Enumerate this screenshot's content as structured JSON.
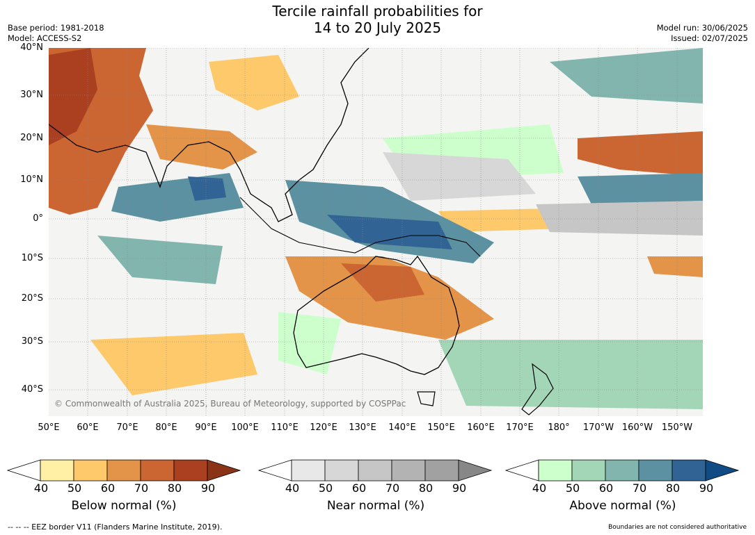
{
  "title_line1": "Tercile rainfall probabilities for",
  "title_line2": "14 to 20 July 2025",
  "base_period": "Base period: 1981-2018",
  "model": "Model: ACCESS-S2",
  "model_run": "Model run: 30/06/2025",
  "issued": "Issued: 02/07/2025",
  "copyright": "© Commonwealth of Australia 2025, Bureau of Meteorology, supported by COSPPac",
  "lat_labels": [
    "40°N",
    "30°N",
    "20°N",
    "10°N",
    "0°",
    "10°S",
    "20°S",
    "30°S",
    "40°S"
  ],
  "lon_labels": [
    "50°E",
    "60°E",
    "70°E",
    "80°E",
    "90°E",
    "100°E",
    "110°E",
    "120°E",
    "130°E",
    "140°E",
    "150°E",
    "160°E",
    "170°E",
    "180°",
    "170°W",
    "160°W",
    "150°W"
  ],
  "colorbars": [
    {
      "title": "Below normal (%)",
      "ticks": [
        "40",
        "50",
        "60",
        "70",
        "80",
        "90"
      ],
      "colors": [
        "#fff0a6",
        "#fdc96a",
        "#e39448",
        "#cb6532",
        "#aa4020"
      ],
      "extend_color": "#8b3317"
    },
    {
      "title": "Near normal (%)",
      "ticks": [
        "40",
        "50",
        "60",
        "70",
        "80",
        "90"
      ],
      "colors": [
        "#e8e8e8",
        "#d7d7d7",
        "#c6c6c6",
        "#b3b3b3",
        "#a1a1a1"
      ],
      "extend_color": "#878787"
    },
    {
      "title": "Above normal (%)",
      "ticks": [
        "40",
        "50",
        "60",
        "70",
        "80",
        "90"
      ],
      "colors": [
        "#ccffcc",
        "#a3d6b7",
        "#82b5ad",
        "#5b91a1",
        "#316495"
      ],
      "extend_color": "#114b85"
    }
  ],
  "footer_left": "--  --  -- EEZ border V11 (Flanders Marine Institute, 2019).",
  "footer_right": "Boundaries are not considered authoritative"
}
